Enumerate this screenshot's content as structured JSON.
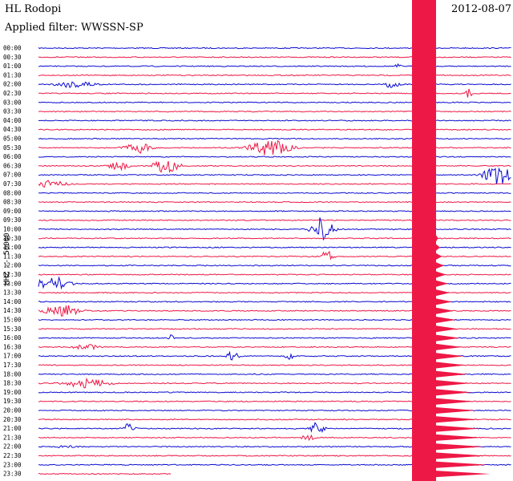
{
  "header": {
    "station": "HL Rodopi",
    "filter": "Applied filter: WWSSN-SP",
    "date": "2012-08-07",
    "channel": "HHZ -- 50000"
  },
  "colors": {
    "blue": "#0b0bd0",
    "red": "#ee1846"
  },
  "chart_data": {
    "type": "line",
    "title": "",
    "xlabel": "",
    "ylabel": "HHZ -- 50000",
    "tick_labels": [
      "00:00",
      "00:30",
      "01:00",
      "01:30",
      "02:00",
      "02:30",
      "03:00",
      "03:30",
      "04:00",
      "04:30",
      "05:00",
      "05:30",
      "06:00",
      "06:30",
      "07:00",
      "07:30",
      "08:00",
      "08:30",
      "09:00",
      "09:30",
      "10:00",
      "10:30",
      "11:00",
      "11:30",
      "12:00",
      "12:30",
      "13:00",
      "13:30",
      "14:00",
      "14:30",
      "15:00",
      "15:30",
      "16:00",
      "16:30",
      "17:00",
      "17:30",
      "18:00",
      "18:30",
      "19:00",
      "19:30",
      "20:00",
      "20:30",
      "21:00",
      "21:30",
      "22:00",
      "22:30",
      "23:00",
      "23:30"
    ],
    "series_colors": [
      "blue",
      "red"
    ],
    "last_trace_end_fraction": 0.28,
    "bursts": [
      {
        "row": 2,
        "pos": 0.76,
        "amp": 3,
        "w": 0.01
      },
      {
        "row": 4,
        "pos": 0.08,
        "amp": 5,
        "w": 0.06
      },
      {
        "row": 4,
        "pos": 0.75,
        "amp": 7,
        "w": 0.02
      },
      {
        "row": 5,
        "pos": 0.91,
        "amp": 6,
        "w": 0.01
      },
      {
        "row": 11,
        "pos": 0.21,
        "amp": 7,
        "w": 0.04
      },
      {
        "row": 11,
        "pos": 0.49,
        "amp": 10,
        "w": 0.06
      },
      {
        "row": 13,
        "pos": 0.17,
        "amp": 6,
        "w": 0.03
      },
      {
        "row": 13,
        "pos": 0.27,
        "amp": 9,
        "w": 0.04
      },
      {
        "row": 14,
        "pos": 0.97,
        "amp": 14,
        "w": 0.04
      },
      {
        "row": 15,
        "pos": 0.03,
        "amp": 6,
        "w": 0.04
      },
      {
        "row": 20,
        "pos": 0.6,
        "amp": 16,
        "w": 0.03
      },
      {
        "row": 23,
        "pos": 0.61,
        "amp": 7,
        "w": 0.02
      },
      {
        "row": 26,
        "pos": 0.03,
        "amp": 9,
        "w": 0.05
      },
      {
        "row": 29,
        "pos": 0.05,
        "amp": 8,
        "w": 0.05
      },
      {
        "row": 32,
        "pos": 0.28,
        "amp": 5,
        "w": 0.01
      },
      {
        "row": 33,
        "pos": 0.1,
        "amp": 4,
        "w": 0.04
      },
      {
        "row": 34,
        "pos": 0.41,
        "amp": 6,
        "w": 0.02
      },
      {
        "row": 34,
        "pos": 0.53,
        "amp": 8,
        "w": 0.01
      },
      {
        "row": 37,
        "pos": 0.1,
        "amp": 6,
        "w": 0.07
      },
      {
        "row": 42,
        "pos": 0.19,
        "amp": 6,
        "w": 0.02
      },
      {
        "row": 42,
        "pos": 0.59,
        "amp": 9,
        "w": 0.02
      },
      {
        "row": 43,
        "pos": 0.57,
        "amp": 4,
        "w": 0.02
      },
      {
        "row": 44,
        "pos": 0.06,
        "amp": 3,
        "w": 0.03
      }
    ],
    "large_event": {
      "start_fraction": 0.8,
      "start_row": 0,
      "end_row": 47
    }
  }
}
